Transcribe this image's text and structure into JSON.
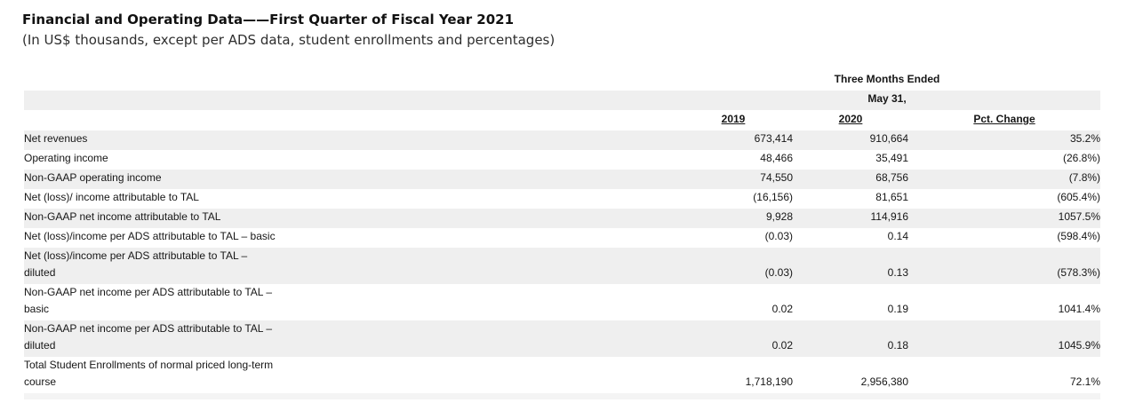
{
  "page": {
    "title": "Financial and Operating Data——First Quarter of Fiscal Year 2021",
    "subtitle": "(In US$ thousands, except per ADS data, student enrollments and percentages)"
  },
  "table": {
    "period_header": "Three Months Ended",
    "period_subheader": "May 31,",
    "columns": [
      "2019",
      "2020",
      "Pct. Change"
    ],
    "colors": {
      "row_shaded": "#efefef",
      "bottom_strip": "#f4f4f4",
      "text": "#161616"
    },
    "rows": [
      {
        "label_lines": [
          "Net revenues"
        ],
        "v2019": "673,414",
        "v2020": "910,664",
        "pct": "35.2%"
      },
      {
        "label_lines": [
          "Operating income"
        ],
        "v2019": "48,466",
        "v2020": "35,491",
        "pct": "(26.8%)"
      },
      {
        "label_lines": [
          "Non-GAAP operating income"
        ],
        "v2019": "74,550",
        "v2020": "68,756",
        "pct": "(7.8%)"
      },
      {
        "label_lines": [
          "Net (loss)/ income attributable to TAL"
        ],
        "v2019": "(16,156)",
        "v2020": "81,651",
        "pct": "(605.4%)"
      },
      {
        "label_lines": [
          "Non-GAAP net income attributable to TAL"
        ],
        "v2019": "9,928",
        "v2020": "114,916",
        "pct": "1057.5%"
      },
      {
        "label_lines": [
          "Net (loss)/income per ADS attributable to TAL – basic"
        ],
        "v2019": "(0.03)",
        "v2020": "0.14",
        "pct": "(598.4%)"
      },
      {
        "label_lines": [
          "Net (loss)/income per ADS attributable to TAL –",
          "diluted"
        ],
        "v2019": "(0.03)",
        "v2020": "0.13",
        "pct": "(578.3%)"
      },
      {
        "label_lines": [
          "Non-GAAP net income per ADS attributable to TAL –",
          "basic"
        ],
        "v2019": "0.02",
        "v2020": "0.19",
        "pct": "1041.4%"
      },
      {
        "label_lines": [
          "Non-GAAP net income per ADS attributable to TAL –",
          "diluted"
        ],
        "v2019": "0.02",
        "v2020": "0.18",
        "pct": "1045.9%"
      },
      {
        "label_lines": [
          "Total Student Enrollments of normal priced long-term",
          "course"
        ],
        "v2019": "1,718,190",
        "v2020": "2,956,380",
        "pct": "72.1%"
      }
    ]
  }
}
